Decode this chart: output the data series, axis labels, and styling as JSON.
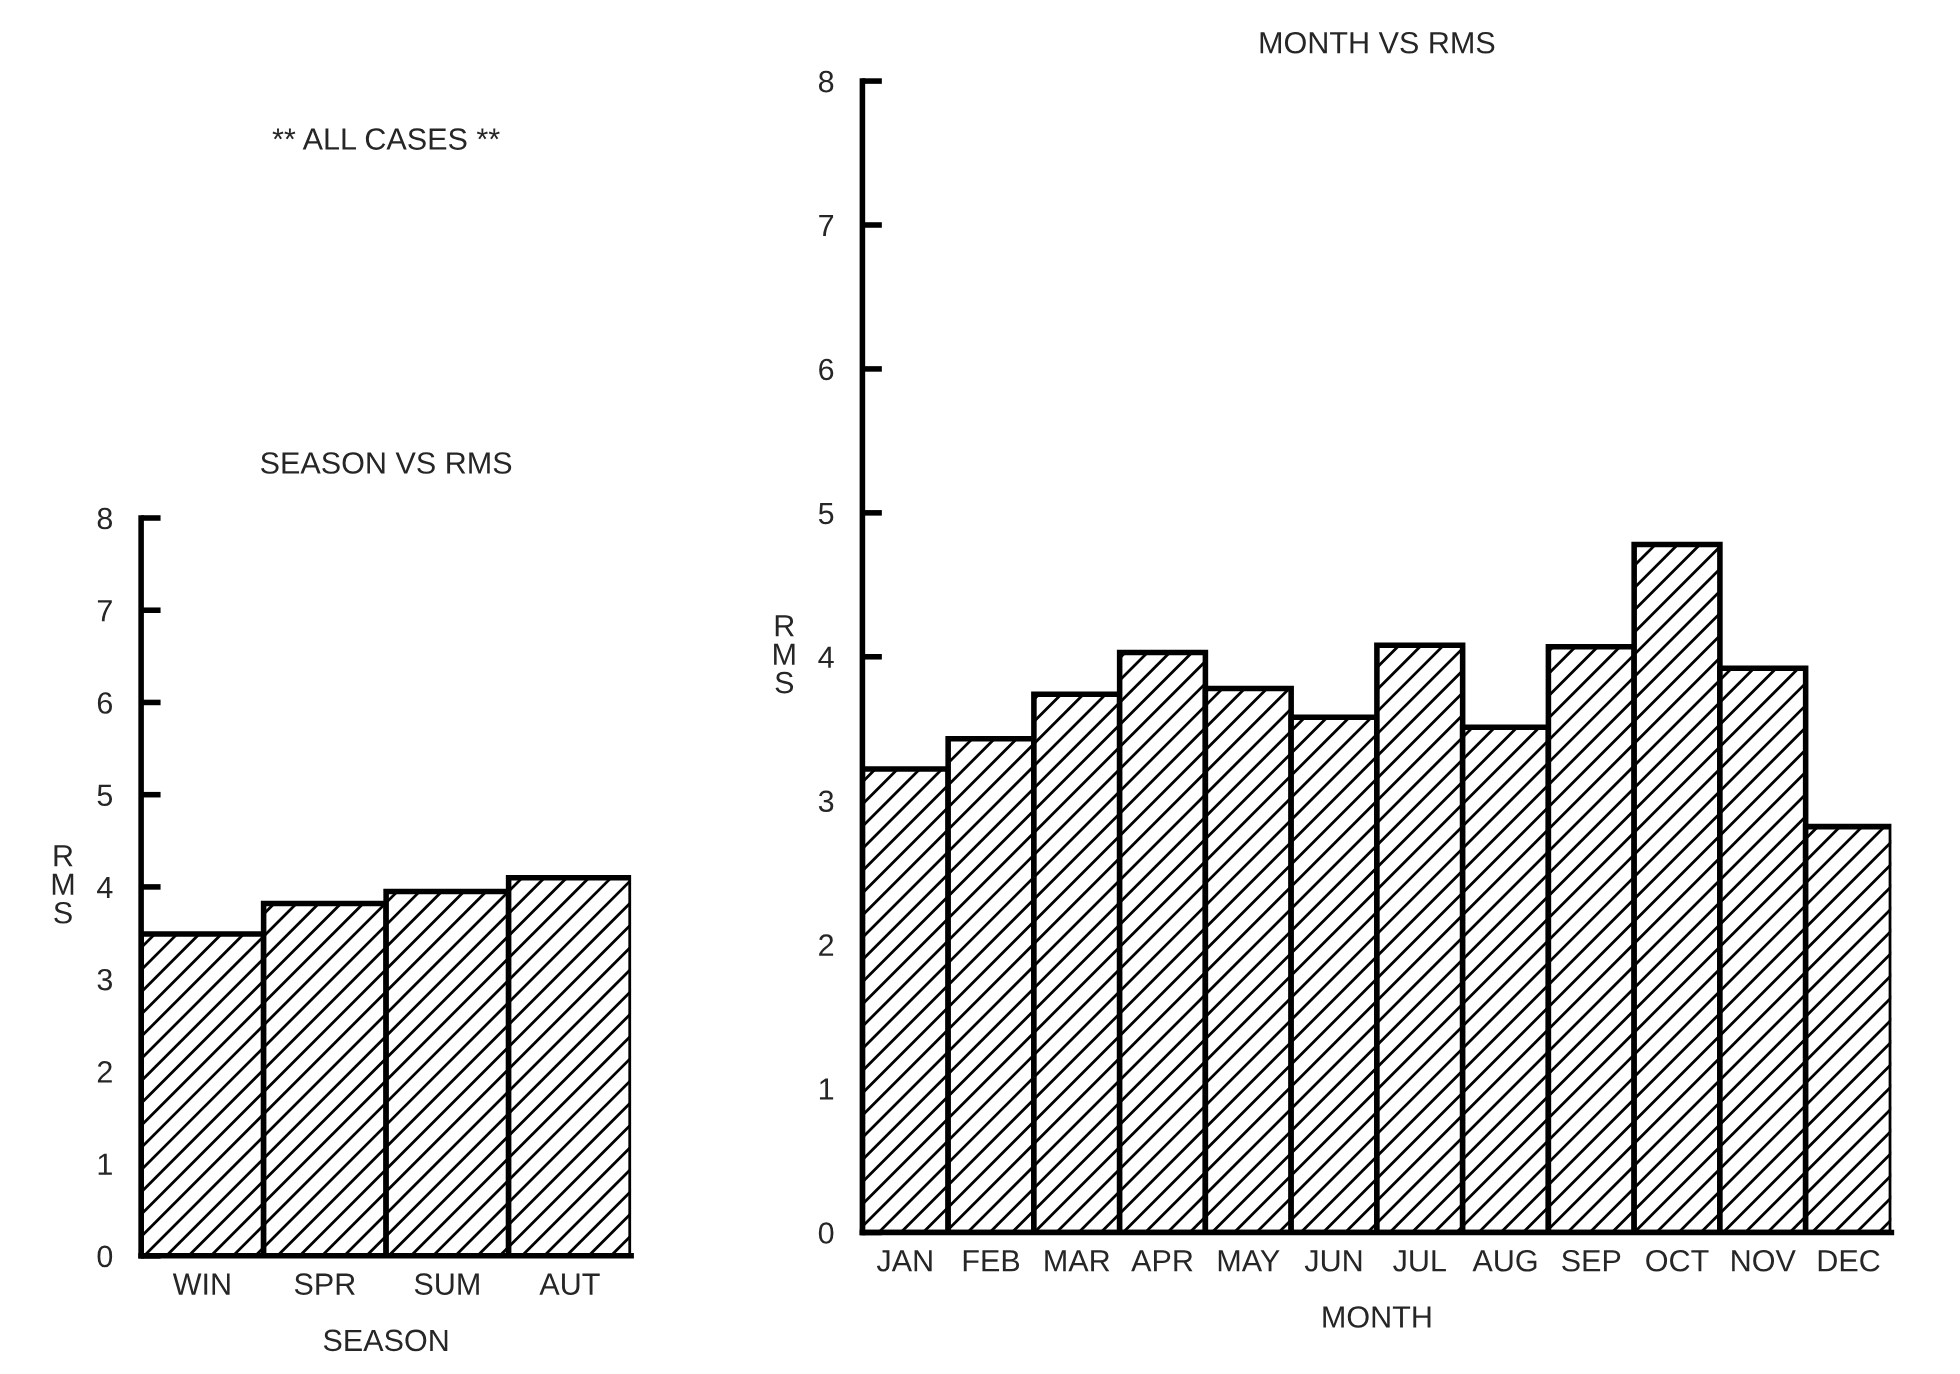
{
  "chart_data": [
    {
      "type": "bar",
      "title": "SEASON VS RMS",
      "xlabel": "SEASON",
      "ylabel": "R\nM\nS",
      "annotations": [
        "** ALL CASES **"
      ],
      "categories": [
        "WIN",
        "SPR",
        "SUM",
        "AUT"
      ],
      "values": [
        3.49,
        3.82,
        3.95,
        4.1
      ],
      "color": "#000000",
      "ylim": [
        0,
        8
      ],
      "yticks": [
        0,
        1,
        2,
        3,
        4,
        5,
        6,
        7,
        8
      ],
      "grid": false,
      "legend": false
    },
    {
      "type": "bar",
      "title": "MONTH VS RMS",
      "xlabel": "MONTH",
      "ylabel": "R\nM\nS",
      "categories": [
        "JAN",
        "FEB",
        "MAR",
        "APR",
        "MAY",
        "JUN",
        "JUL",
        "AUG",
        "SEP",
        "OCT",
        "NOV",
        "DEC"
      ],
      "values": [
        3.22,
        3.43,
        3.74,
        4.03,
        3.78,
        3.58,
        4.08,
        3.51,
        4.07,
        4.78,
        3.92,
        2.82
      ],
      "color": "#000000",
      "ylim": [
        0,
        8
      ],
      "yticks": [
        0,
        1,
        2,
        3,
        4,
        5,
        6,
        7,
        8
      ],
      "grid": false,
      "legend": false
    }
  ]
}
